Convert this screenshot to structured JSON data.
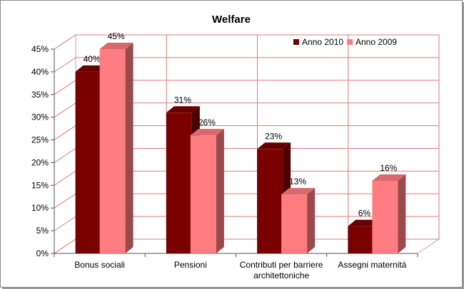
{
  "chart_data": {
    "type": "bar",
    "title": "Welfare",
    "xlabel": "",
    "ylabel": "",
    "categories": [
      [
        "Bonus sociali"
      ],
      [
        "Pensioni"
      ],
      [
        "Contributi per barriere",
        "architettoniche"
      ],
      [
        "Assegni maternità"
      ]
    ],
    "series": [
      {
        "name": "Anno 2010",
        "values": [
          40,
          31,
          23,
          6
        ],
        "color": "#7a0000",
        "labels": [
          "40%",
          "31%",
          "23%",
          "6%"
        ]
      },
      {
        "name": "Anno 2009",
        "values": [
          45,
          26,
          13,
          16
        ],
        "color": "#ff7c80",
        "labels": [
          "45%",
          "26%",
          "13%",
          "16%"
        ]
      }
    ],
    "ylim": [
      0,
      45
    ],
    "yticks": [
      0,
      5,
      10,
      15,
      20,
      25,
      30,
      35,
      40,
      45
    ],
    "ytick_labels": [
      "0%",
      "5%",
      "10%",
      "15%",
      "20%",
      "25%",
      "30%",
      "35%",
      "40%",
      "45%"
    ],
    "grid": true,
    "legend_position": "top-right",
    "style": "3d-clustered"
  }
}
